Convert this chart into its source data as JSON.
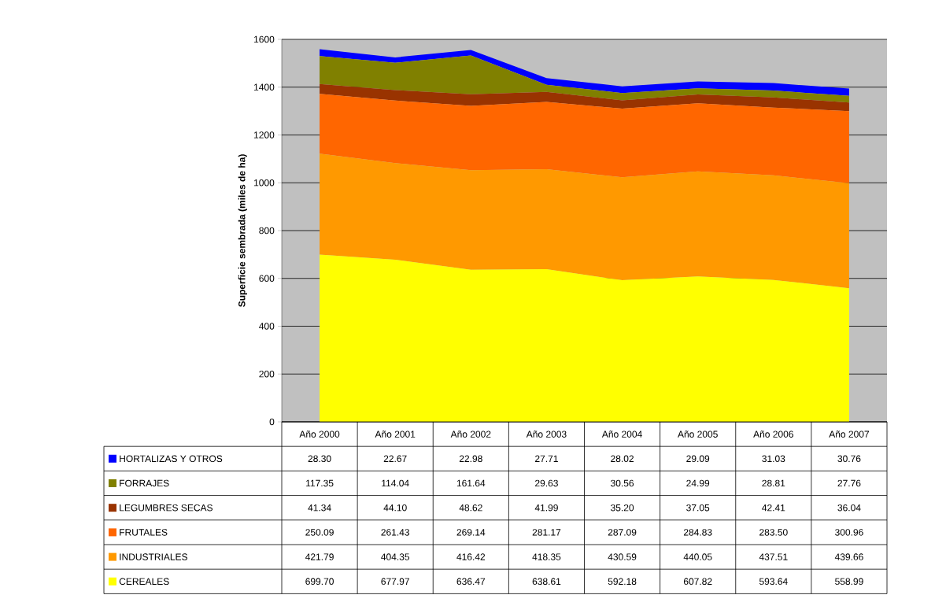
{
  "chart_data": {
    "type": "area",
    "stacked": true,
    "ylabel": "Superficie sembrada (miles de ha)",
    "categories": [
      "Año 2000",
      "Año 2001",
      "Año 2002",
      "Año 2003",
      "Año 2004",
      "Año 2005",
      "Año 2006",
      "Año 2007"
    ],
    "ylim": [
      0,
      1600
    ],
    "yticks": [
      0,
      200,
      400,
      600,
      800,
      1000,
      1200,
      1400,
      1600
    ],
    "grid": "y",
    "legend": "bottom",
    "series": [
      {
        "name": "CEREALES",
        "color": "#ffff00",
        "values": [
          699.7,
          677.97,
          636.47,
          638.61,
          592.18,
          607.82,
          593.64,
          558.99
        ],
        "value_labels": [
          "699.70",
          "677.97",
          "636.47",
          "638.61",
          "592.18",
          "607.82",
          "593.64",
          "558.99"
        ]
      },
      {
        "name": "INDUSTRIALES",
        "color": "#ff9900",
        "values": [
          421.79,
          404.35,
          416.42,
          418.35,
          430.59,
          440.05,
          437.51,
          439.66
        ],
        "value_labels": [
          "421.79",
          "404.35",
          "416.42",
          "418.35",
          "430.59",
          "440.05",
          "437.51",
          "439.66"
        ]
      },
      {
        "name": "FRUTALES",
        "color": "#ff6600",
        "values": [
          250.09,
          261.43,
          269.14,
          281.17,
          287.09,
          284.83,
          283.5,
          300.96
        ],
        "value_labels": [
          "250.09",
          "261.43",
          "269.14",
          "281.17",
          "287.09",
          "284.83",
          "283.50",
          "300.96"
        ]
      },
      {
        "name": "LEGUMBRES SECAS",
        "color": "#993300",
        "values": [
          41.34,
          44.1,
          48.62,
          41.99,
          35.2,
          37.05,
          42.41,
          36.04
        ],
        "value_labels": [
          "41.34",
          "44.10",
          "48.62",
          "41.99",
          "35.20",
          "37.05",
          "42.41",
          "36.04"
        ]
      },
      {
        "name": "FORRAJES",
        "color": "#808000",
        "values": [
          117.35,
          114.04,
          161.64,
          29.63,
          30.56,
          24.99,
          28.81,
          27.76
        ],
        "value_labels": [
          "117.35",
          "114.04",
          "161.64",
          "29.63",
          "30.56",
          "24.99",
          "28.81",
          "27.76"
        ]
      },
      {
        "name": "HORTALIZAS Y OTROS",
        "color": "#0000ff",
        "values": [
          28.3,
          22.67,
          22.98,
          27.71,
          28.02,
          29.09,
          31.03,
          30.76
        ],
        "value_labels": [
          "28.30",
          "22.67",
          "22.98",
          "27.71",
          "28.02",
          "29.09",
          "31.03",
          "30.76"
        ]
      }
    ]
  }
}
